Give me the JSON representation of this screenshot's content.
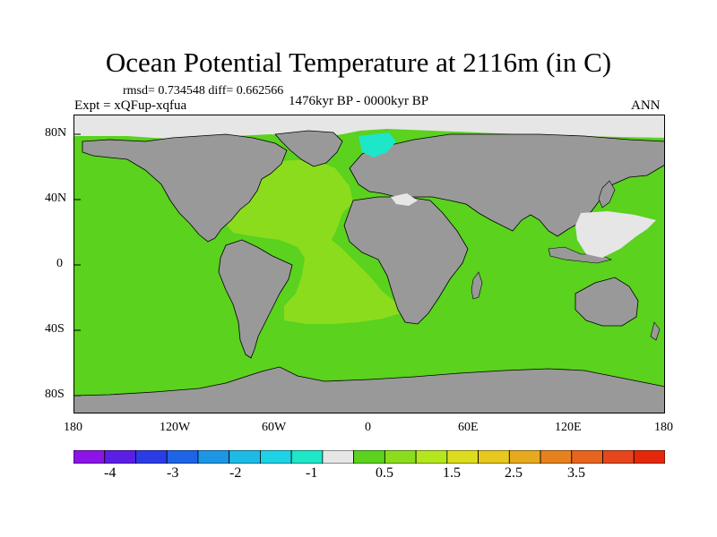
{
  "title": "Ocean Potential Temperature at 2116m (in C)",
  "stats": "rmsd= 0.734548 diff= 0.662566",
  "experiment": "Expt = xQFup-xqfua",
  "period": "1476kyr BP - 0000kyr BP",
  "season": "ANN",
  "axes": {
    "x_ticks": [
      "180",
      "120W",
      "60W",
      "0",
      "60E",
      "120E",
      "180"
    ],
    "y_ticks": [
      "80N",
      "40N",
      "0",
      "40S",
      "80S"
    ]
  },
  "colorbar": {
    "colors": [
      "#8c14e6",
      "#5a1ee6",
      "#2b3ce6",
      "#1e64e6",
      "#1e96e6",
      "#1ebae6",
      "#1ed2e6",
      "#1ee6c8",
      "#e6e6e6",
      "#5ad21e",
      "#8cdc1e",
      "#b4e61e",
      "#dcdc1e",
      "#e6c81e",
      "#e6aa1e",
      "#e6821e",
      "#e6641e",
      "#e6461e",
      "#e6280a"
    ],
    "labels": [
      "-4",
      "-3",
      "-2",
      "-1",
      "0.5",
      "1.5",
      "2.5",
      "3.5"
    ]
  },
  "colors": {
    "land": "#999999",
    "ocean": "#5ad21e",
    "atlantic_warm": "#8cdc1e",
    "arctic_missing": "#e6e6e6",
    "nordic_cold": "#1ee6c8",
    "coast": "#000000"
  }
}
